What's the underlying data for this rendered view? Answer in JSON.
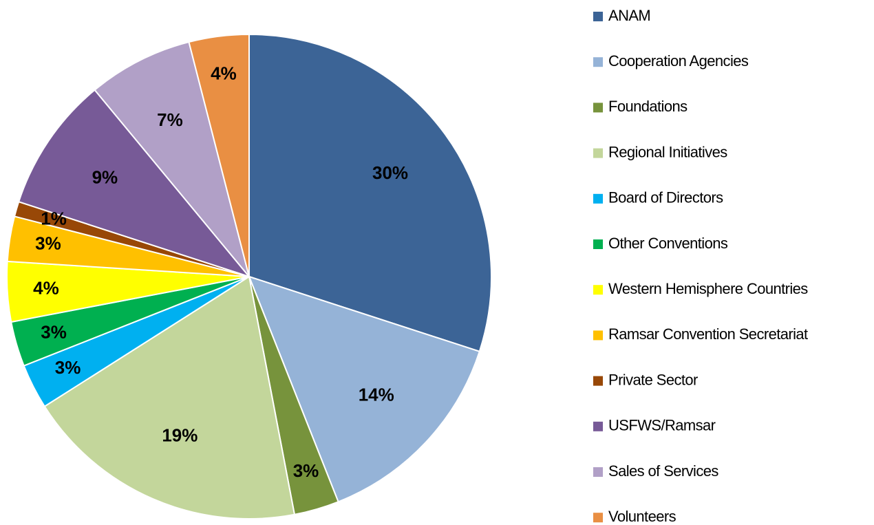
{
  "chart_data": {
    "type": "pie",
    "categories": [
      "ANAM",
      "Cooperation Agencies",
      "Foundations",
      "Regional Initiatives",
      "Board of Directors",
      "Other Conventions",
      "Western Hemisphere Countries",
      "Ramsar Convention Secretariat",
      "Private Sector",
      "USFWS/Ramsar",
      "Sales of Services",
      "Volunteers"
    ],
    "values": [
      30,
      14,
      3,
      19,
      3,
      3,
      4,
      3,
      1,
      9,
      7,
      4
    ],
    "value_labels": [
      "30%",
      "14%",
      "3%",
      "19%",
      "3%",
      "3%",
      "4%",
      "3%",
      "1%",
      "9%",
      "7%",
      "4%"
    ],
    "colors": [
      "#3c6496",
      "#95b3d7",
      "#77933c",
      "#c3d69b",
      "#00b0f0",
      "#00b050",
      "#ffff00",
      "#ffc000",
      "#984807",
      "#775a97",
      "#b1a0c7",
      "#e98f43"
    ],
    "legend": "right"
  }
}
